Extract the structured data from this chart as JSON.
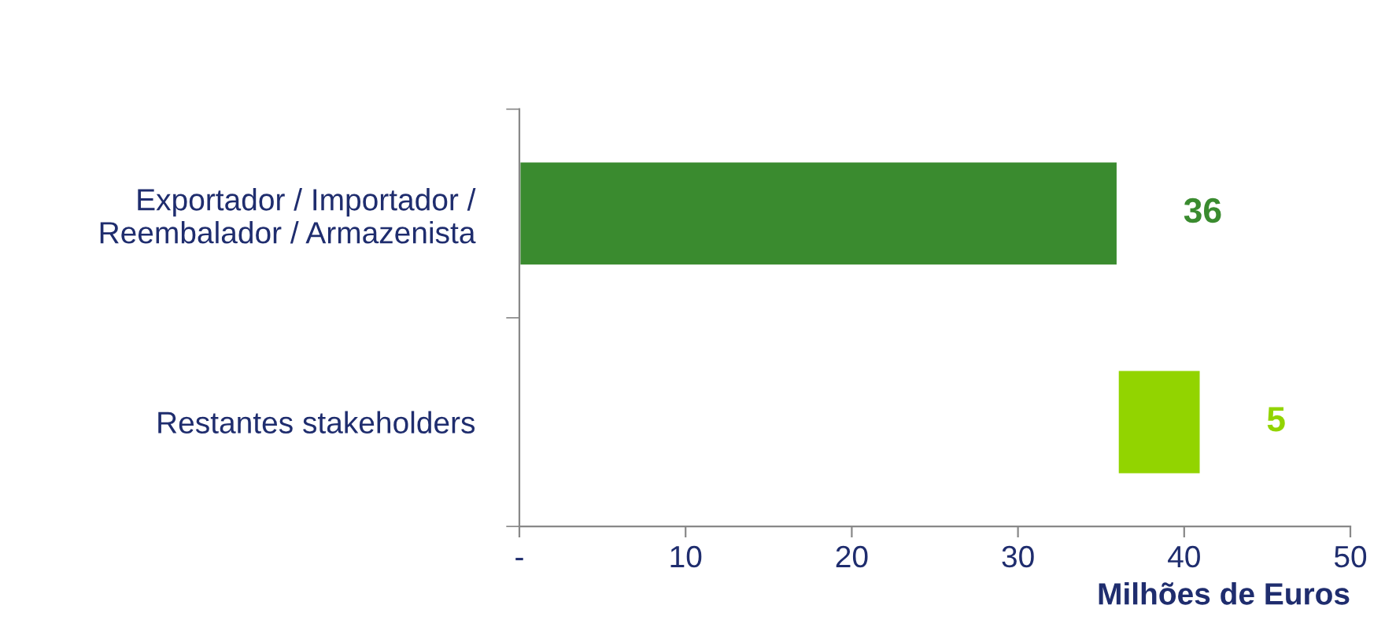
{
  "chart_data": {
    "type": "bar",
    "orientation": "horizontal",
    "categories": [
      "Exportador / Importador /\nReembalador / Armazenista",
      "Restantes stakeholders"
    ],
    "values": [
      36,
      5
    ],
    "base": [
      0,
      36
    ],
    "colors": [
      "#3a8b2f",
      "#92d400"
    ],
    "data_labels": true,
    "xlim": [
      0,
      50
    ],
    "xticks": [
      {
        "value": 0,
        "label": "-"
      },
      10,
      20,
      30,
      40,
      50
    ],
    "xlabel": "Milhões de Euros",
    "grid": false,
    "legend": false
  }
}
